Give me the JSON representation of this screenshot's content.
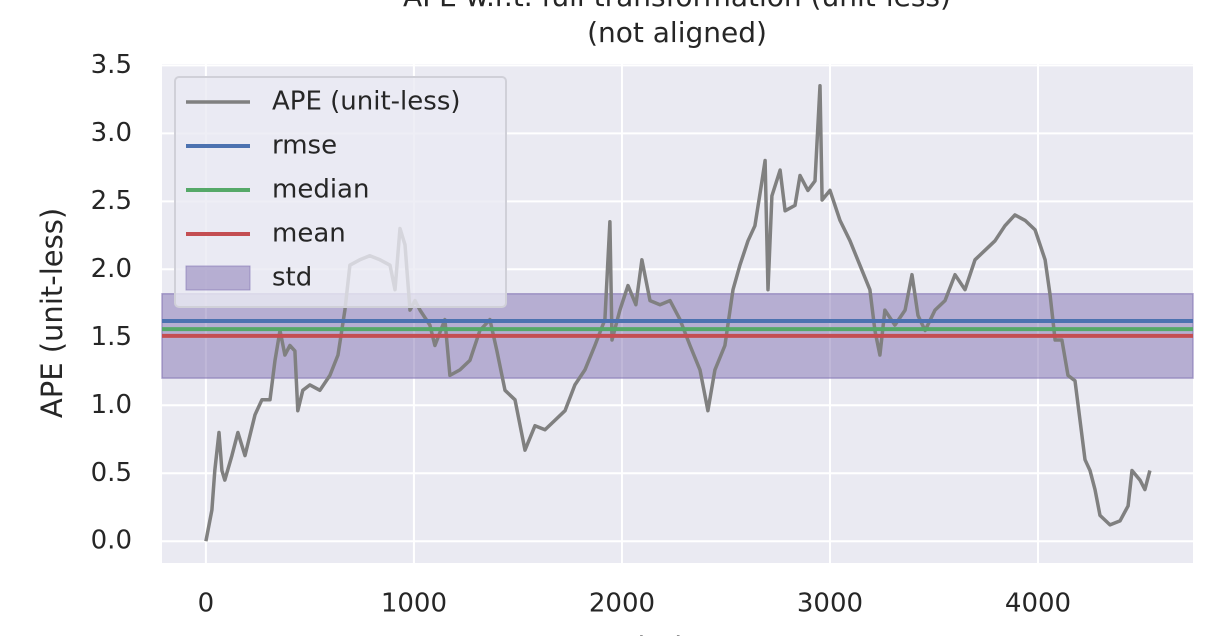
{
  "chart_data": {
    "type": "line",
    "title": [
      "APE w.r.t. full transformation (unit-less)",
      "(not aligned)"
    ],
    "xlabel": "index",
    "ylabel": "APE (unit-less)",
    "xlim": [
      -211,
      4745
    ],
    "ylim": [
      -0.16,
      3.51
    ],
    "xticks": [
      0,
      1000,
      2000,
      3000,
      4000
    ],
    "yticks": [
      {
        "value": 0,
        "label": "0.0"
      },
      {
        "value": 0.5,
        "label": "0.5"
      },
      {
        "value": 1,
        "label": "1.0"
      },
      {
        "value": 1.5,
        "label": "1.5"
      },
      {
        "value": 2,
        "label": "2.0"
      },
      {
        "value": 2.5,
        "label": "2.5"
      },
      {
        "value": 3,
        "label": "3.0"
      },
      {
        "value": 3.5,
        "label": "3.5"
      }
    ],
    "grid": true,
    "legend": "upper left",
    "x": [
      0,
      29,
      43,
      63,
      77,
      91,
      125,
      154,
      188,
      236,
      269,
      308,
      332,
      356,
      380,
      404,
      428,
      442,
      466,
      500,
      548,
      596,
      635,
      668,
      692,
      740,
      788,
      837,
      885,
      909,
      933,
      957,
      981,
      1005,
      1029,
      1077,
      1101,
      1149,
      1173,
      1221,
      1269,
      1317,
      1365,
      1399,
      1438,
      1486,
      1534,
      1582,
      1630,
      1678,
      1726,
      1774,
      1822,
      1870,
      1918,
      1942,
      1952,
      1990,
      2029,
      2067,
      2096,
      2135,
      2183,
      2231,
      2279,
      2327,
      2375,
      2413,
      2447,
      2495,
      2534,
      2567,
      2606,
      2639,
      2673,
      2688,
      2702,
      2721,
      2760,
      2784,
      2832,
      2856,
      2894,
      2928,
      2952,
      2962,
      3000,
      3048,
      3096,
      3144,
      3192,
      3216,
      3240,
      3264,
      3312,
      3361,
      3394,
      3423,
      3457,
      3505,
      3553,
      3601,
      3649,
      3697,
      3745,
      3793,
      3841,
      3889,
      3938,
      3986,
      4034,
      4058,
      4082,
      4115,
      4144,
      4178,
      4202,
      4226,
      4250,
      4274,
      4298,
      4346,
      4394,
      4433,
      4452,
      4490,
      4514,
      4538
    ],
    "series": [
      {
        "name": "APE (unit-less)",
        "color": "#808080",
        "values": [
          0,
          0.23,
          0.52,
          0.8,
          0.52,
          0.45,
          0.63,
          0.8,
          0.63,
          0.93,
          1.04,
          1.04,
          1.33,
          1.55,
          1.37,
          1.44,
          1.4,
          0.96,
          1.11,
          1.15,
          1.11,
          1.22,
          1.37,
          1.7,
          2.03,
          2.07,
          2.1,
          2.07,
          2.03,
          1.85,
          2.3,
          2.18,
          1.7,
          1.77,
          1.7,
          1.59,
          1.44,
          1.63,
          1.22,
          1.26,
          1.33,
          1.55,
          1.63,
          1.4,
          1.11,
          1.04,
          0.67,
          0.85,
          0.82,
          0.89,
          0.96,
          1.15,
          1.26,
          1.44,
          1.63,
          2.35,
          1.48,
          1.7,
          1.88,
          1.74,
          2.07,
          1.77,
          1.74,
          1.77,
          1.63,
          1.44,
          1.26,
          0.96,
          1.26,
          1.44,
          1.85,
          2.03,
          2.21,
          2.32,
          2.65,
          2.8,
          1.85,
          2.54,
          2.73,
          2.43,
          2.47,
          2.69,
          2.58,
          2.65,
          3.35,
          2.51,
          2.58,
          2.36,
          2.21,
          2.03,
          1.85,
          1.55,
          1.37,
          1.7,
          1.59,
          1.7,
          1.96,
          1.66,
          1.55,
          1.7,
          1.77,
          1.96,
          1.85,
          2.07,
          2.14,
          2.21,
          2.32,
          2.4,
          2.36,
          2.29,
          2.07,
          1.81,
          1.48,
          1.48,
          1.22,
          1.18,
          0.89,
          0.6,
          0.52,
          0.38,
          0.19,
          0.12,
          0.15,
          0.26,
          0.52,
          0.45,
          0.38,
          0.52
        ]
      }
    ],
    "stats": [
      {
        "name": "rmse",
        "color": "#4c72b0",
        "value": 1.62
      },
      {
        "name": "median",
        "color": "#55a868",
        "value": 1.56
      },
      {
        "name": "mean",
        "color": "#c44e52",
        "value": 1.51
      }
    ],
    "std": {
      "name": "std",
      "color": "#8172b2",
      "value": 0.31
    }
  }
}
